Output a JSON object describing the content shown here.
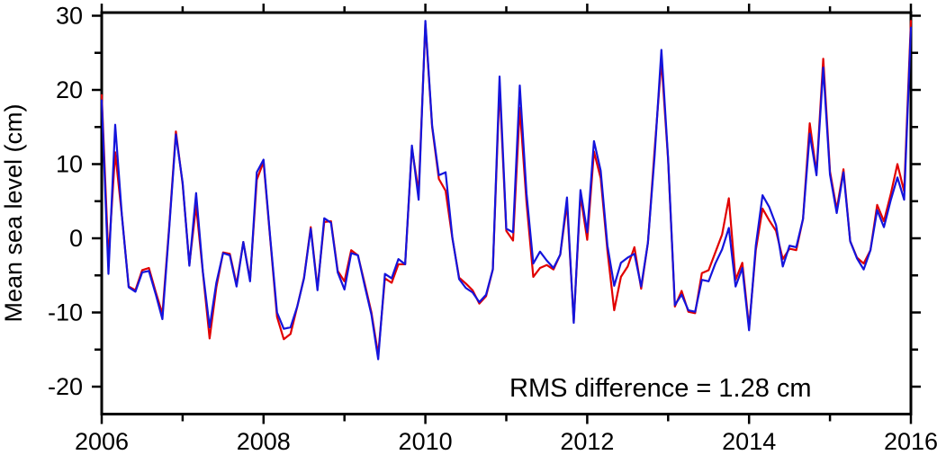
{
  "page": {
    "background": "#ffffff"
  },
  "chart_data": {
    "type": "line",
    "title": "",
    "xlabel": "",
    "ylabel": "Mean sea level (cm)",
    "annotation": "RMS difference = 1.28 cm",
    "legend_position": "none",
    "grid": "off",
    "axis_color": "#000000",
    "x_start_year": 2006,
    "x_end_year": 2016,
    "sampling": "monthly",
    "points_per_series": 121,
    "x_major_ticks": [
      2006,
      2008,
      2010,
      2012,
      2014,
      2016
    ],
    "x_minor_ticks": [
      2007,
      2009,
      2011,
      2013,
      2015
    ],
    "y_major_ticks": [
      -20,
      -10,
      0,
      10,
      20,
      30
    ],
    "y_minor_ticks": [
      -15,
      -5,
      5,
      15,
      25
    ],
    "ylim": [
      -23.5,
      30.5
    ],
    "series": [
      {
        "name": "red-line",
        "color": "#e10000",
        "values": [
          19.3,
          -2.8,
          11.6,
          3,
          -6.5,
          -7,
          -4.3,
          -4,
          -7.2,
          -10.2,
          1.5,
          14.4,
          7.3,
          -3.5,
          4.4,
          -4.6,
          -13.5,
          -6.6,
          -1.9,
          -2.1,
          -6.2,
          -0.5,
          -5.6,
          7.9,
          10.3,
          -0.2,
          -10.6,
          -13.6,
          -12.9,
          -9.2,
          -5.3,
          1.5,
          -6.7,
          2.2,
          2.3,
          -4.4,
          -5.8,
          -1.6,
          -2.3,
          -6.1,
          -10,
          -15.7,
          -5.4,
          -6,
          -3.5,
          -3.5,
          12.2,
          6.2,
          28.9,
          15,
          8,
          6.4,
          0,
          -5.3,
          -6.1,
          -7,
          -8.8,
          -7.8,
          -4.2,
          20.5,
          1,
          -0.3,
          17.6,
          4.8,
          -5.2,
          -4,
          -3.6,
          -4.2,
          -2.2,
          4.7,
          -11.2,
          5.8,
          -0.2,
          11.7,
          8.1,
          -1.7,
          -9.7,
          -5.2,
          -3.8,
          -1.2,
          -6.8,
          -0.6,
          12,
          24,
          10.5,
          -9.2,
          -7.1,
          -9.9,
          -10.1,
          -4.7,
          -4.3,
          -1.9,
          0.5,
          5.4,
          -5.6,
          -3.3,
          -12,
          -1.6,
          4,
          2.4,
          1,
          -2.8,
          -1.4,
          -1.6,
          2.6,
          15.5,
          8.8,
          24.2,
          9,
          3.9,
          9.3,
          -0.4,
          -2.6,
          -3.4,
          -1.6,
          4.5,
          2.3,
          5.9,
          10,
          6.3,
          29.3
        ]
      },
      {
        "name": "blue-line",
        "color": "#1414dc",
        "values": [
          18.6,
          -4.8,
          15.3,
          3,
          -6.6,
          -7.2,
          -4.6,
          -4.4,
          -7.5,
          -10.9,
          1.2,
          14,
          7.5,
          -3.7,
          6.1,
          -4.5,
          -12,
          -6,
          -2,
          -2.3,
          -6.5,
          -0.5,
          -5.8,
          8.9,
          10.6,
          0,
          -10,
          -12.2,
          -12,
          -9.2,
          -5.4,
          1.3,
          -7,
          2.7,
          2.1,
          -4.6,
          -6.9,
          -2,
          -2.3,
          -6.4,
          -10.3,
          -16.3,
          -4.8,
          -5.4,
          -2.8,
          -3.5,
          12.5,
          5.2,
          29.3,
          15.2,
          8.5,
          8.9,
          0.1,
          -5.5,
          -6.7,
          -7.3,
          -8.6,
          -7.6,
          -4.2,
          21.8,
          1.3,
          0.8,
          20.6,
          6,
          -3.4,
          -1.8,
          -3,
          -4,
          -2.2,
          5.5,
          -11.4,
          6.5,
          0.8,
          13.1,
          9.1,
          -1,
          -6.4,
          -3.3,
          -2.6,
          -2.1,
          -6.5,
          -0.6,
          11.2,
          25.4,
          10.7,
          -9,
          -7.6,
          -9.7,
          -9.9,
          -5.6,
          -5.8,
          -3.4,
          -1.5,
          1.4,
          -6.5,
          -4,
          -12.4,
          -1,
          5.8,
          4.2,
          1.8,
          -3.8,
          -1,
          -1.2,
          2.6,
          14.1,
          8.5,
          23,
          8.6,
          3.4,
          8.9,
          -0.4,
          -2.7,
          -4.2,
          -1.6,
          3.8,
          1.5,
          5.1,
          8.2,
          5.2,
          28.4
        ]
      }
    ]
  }
}
